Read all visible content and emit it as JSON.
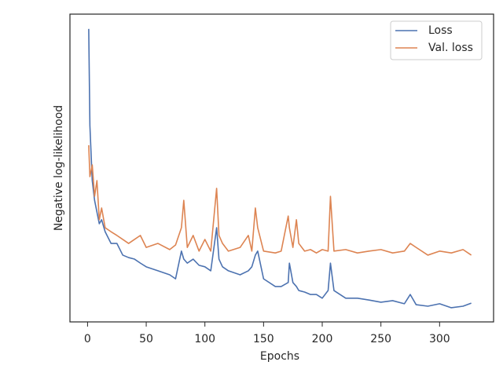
{
  "chart_data": {
    "type": "line",
    "x_label": "Epochs",
    "y_label": "Negative log-likelihood",
    "x": [
      1,
      2,
      4,
      6,
      8,
      10,
      12,
      15,
      20,
      25,
      30,
      35,
      40,
      45,
      50,
      60,
      70,
      75,
      80,
      82,
      85,
      90,
      95,
      100,
      105,
      110,
      112,
      115,
      120,
      130,
      137,
      140,
      143,
      145,
      150,
      160,
      165,
      171,
      172,
      175,
      178,
      180,
      185,
      190,
      195,
      200,
      205,
      207,
      210,
      220,
      230,
      240,
      250,
      260,
      270,
      275,
      280,
      290,
      300,
      310,
      320,
      327
    ],
    "series": [
      {
        "name": "Loss",
        "color": "#4c72b0",
        "values": [
          95.2,
          63.8,
          45.9,
          39.5,
          35.7,
          31.9,
          33.2,
          29.3,
          25.5,
          25.5,
          21.7,
          20.9,
          20.4,
          19.1,
          17.9,
          16.6,
          15.3,
          14.0,
          23.0,
          20.4,
          19.1,
          20.4,
          18.4,
          17.9,
          16.6,
          30.6,
          20.4,
          17.9,
          16.6,
          15.3,
          16.6,
          17.9,
          21.7,
          23.0,
          14.0,
          11.5,
          11.5,
          12.8,
          19.1,
          12.8,
          11.5,
          10.2,
          9.7,
          8.9,
          8.9,
          7.7,
          10.2,
          19.1,
          10.2,
          7.7,
          7.7,
          7.1,
          6.4,
          6.9,
          5.9,
          8.9,
          5.6,
          5.1,
          5.9,
          4.6,
          5.1,
          6.1
        ]
      },
      {
        "name": "Val. loss",
        "color": "#dd8452",
        "values": [
          57.4,
          47.2,
          51.0,
          40.8,
          45.9,
          33.2,
          37.0,
          30.6,
          29.3,
          28.1,
          26.8,
          25.5,
          26.8,
          28.1,
          24.2,
          25.5,
          23.5,
          25.0,
          30.6,
          39.5,
          24.2,
          28.1,
          23.0,
          26.8,
          23.0,
          43.4,
          28.1,
          25.5,
          23.0,
          24.2,
          28.1,
          23.0,
          37.0,
          30.6,
          23.0,
          22.4,
          23.0,
          34.4,
          30.6,
          24.2,
          33.2,
          25.5,
          23.0,
          23.5,
          22.4,
          23.5,
          23.0,
          40.8,
          23.0,
          23.5,
          22.4,
          23.0,
          23.5,
          22.4,
          23.0,
          25.5,
          24.2,
          21.7,
          23.0,
          22.4,
          23.5,
          21.7
        ]
      }
    ],
    "xlim": [
      -15,
      346
    ],
    "xticks": [
      0,
      50,
      100,
      150,
      200,
      250,
      300
    ],
    "ylim": [
      0,
      100
    ],
    "legend": "upper right"
  }
}
